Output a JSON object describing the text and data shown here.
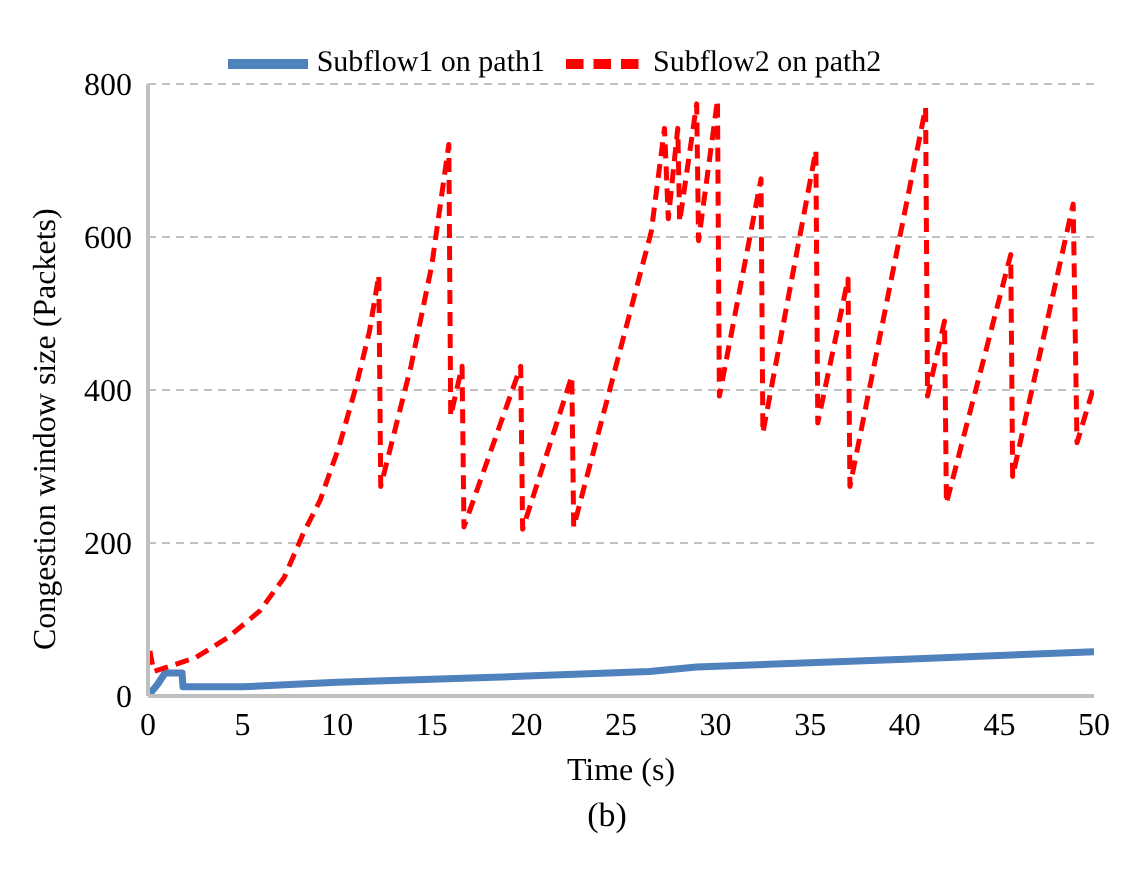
{
  "chart_data": {
    "type": "line",
    "xlabel": "Time (s)",
    "ylabel": "Congestion window size (Packets)",
    "annotations": [
      "(b)"
    ],
    "xlim": [
      0,
      50
    ],
    "xticks": [
      0,
      5,
      10,
      15,
      20,
      25,
      30,
      35,
      40,
      45,
      50
    ],
    "ylim": [
      0,
      800
    ],
    "yticks": [
      0,
      200,
      400,
      600,
      800
    ],
    "grid": "y",
    "legend": "top",
    "marker": "none",
    "series": [
      {
        "name": "Subflow1 on path1",
        "color": "#4f81bd",
        "line_style": "solid",
        "x": [
          0,
          0.5,
          0.9,
          1.8,
          1.85,
          5,
          10,
          20,
          26.5,
          29,
          40,
          50
        ],
        "values": [
          0,
          15,
          30,
          30,
          12,
          12,
          18,
          26,
          32,
          38,
          48,
          58
        ]
      },
      {
        "name": "Subflow2 on path2",
        "color": "#ff0000",
        "line_style": "dashed",
        "x": [
          0.1,
          0.3,
          2.5,
          4.2,
          5.9,
          7.2,
          8.2,
          9.1,
          10.1,
          11.0,
          11.7,
          12.2,
          12.3,
          13.9,
          15.0,
          15.9,
          16.0,
          16.6,
          16.7,
          19.7,
          19.8,
          22.4,
          22.5,
          26.6,
          27.3,
          27.5,
          28.0,
          28.1,
          29.0,
          29.1,
          30.1,
          30.2,
          32.4,
          32.5,
          35.3,
          35.4,
          37.0,
          37.1,
          41.1,
          41.2,
          42.1,
          42.2,
          45.6,
          45.7,
          48.9,
          49.1,
          50
        ],
        "values": [
          59,
          32,
          50,
          76,
          111,
          155,
          212,
          256,
          326,
          405,
          476,
          550,
          274,
          431,
          563,
          721,
          366,
          431,
          221,
          431,
          218,
          418,
          221,
          607,
          742,
          624,
          742,
          620,
          774,
          595,
          779,
          392,
          676,
          344,
          713,
          357,
          545,
          274,
          769,
          392,
          490,
          252,
          577,
          287,
          643,
          331,
          405
        ]
      }
    ]
  }
}
